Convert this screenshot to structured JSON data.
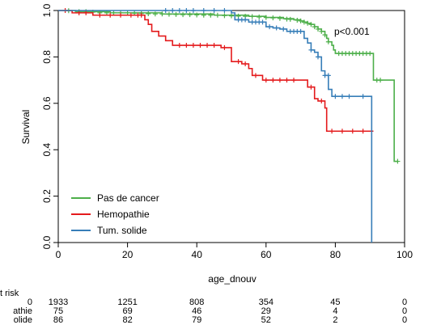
{
  "chart_data": {
    "type": "line",
    "subtype": "kaplan-meier step",
    "xlabel": "age_dnouv",
    "ylabel": "Survival",
    "xlim": [
      0,
      100
    ],
    "ylim": [
      0,
      1
    ],
    "x_ticks": [
      "0",
      "20",
      "40",
      "60",
      "80",
      "100"
    ],
    "y_ticks": [
      "0.0",
      "0.2",
      "0.4",
      "0.6",
      "0.8",
      "1.0"
    ],
    "annotation": "p<0.001",
    "legend_position": "bottom-left",
    "grid": false,
    "series": [
      {
        "name": "Pas de cancer",
        "color": "#4daf4a",
        "steps": [
          [
            0,
            1.0
          ],
          [
            5,
            0.995
          ],
          [
            15,
            0.99
          ],
          [
            30,
            0.985
          ],
          [
            45,
            0.98
          ],
          [
            55,
            0.975
          ],
          [
            60,
            0.97
          ],
          [
            65,
            0.965
          ],
          [
            68,
            0.96
          ],
          [
            70,
            0.955
          ],
          [
            71,
            0.95
          ],
          [
            72,
            0.945
          ],
          [
            73,
            0.94
          ],
          [
            74,
            0.93
          ],
          [
            75,
            0.92
          ],
          [
            76,
            0.91
          ],
          [
            77,
            0.895
          ],
          [
            77.5,
            0.88
          ],
          [
            78,
            0.865
          ],
          [
            79,
            0.85
          ],
          [
            79.5,
            0.83
          ],
          [
            80,
            0.815
          ],
          [
            91,
            0.7
          ],
          [
            97,
            0.35
          ],
          [
            98,
            0.35
          ]
        ],
        "censors": [
          [
            3,
            0.999
          ],
          [
            6,
            0.995
          ],
          [
            8,
            0.995
          ],
          [
            10,
            0.993
          ],
          [
            12,
            0.99
          ],
          [
            14,
            0.99
          ],
          [
            16,
            0.99
          ],
          [
            18,
            0.99
          ],
          [
            20,
            0.99
          ],
          [
            22,
            0.988
          ],
          [
            24,
            0.987
          ],
          [
            26,
            0.986
          ],
          [
            28,
            0.985
          ],
          [
            30,
            0.985
          ],
          [
            32,
            0.984
          ],
          [
            34,
            0.983
          ],
          [
            36,
            0.982
          ],
          [
            38,
            0.982
          ],
          [
            40,
            0.981
          ],
          [
            42,
            0.98
          ],
          [
            44,
            0.98
          ],
          [
            46,
            0.98
          ],
          [
            48,
            0.978
          ],
          [
            50,
            0.977
          ],
          [
            52,
            0.976
          ],
          [
            54,
            0.975
          ],
          [
            56,
            0.974
          ],
          [
            58,
            0.972
          ],
          [
            60,
            0.97
          ],
          [
            62,
            0.968
          ],
          [
            64,
            0.966
          ],
          [
            66,
            0.963
          ],
          [
            67,
            0.962
          ],
          [
            69,
            0.958
          ],
          [
            70,
            0.955
          ],
          [
            71,
            0.95
          ],
          [
            72,
            0.945
          ],
          [
            73,
            0.94
          ],
          [
            74,
            0.93
          ],
          [
            75,
            0.92
          ],
          [
            76,
            0.91
          ],
          [
            77,
            0.895
          ],
          [
            78,
            0.865
          ],
          [
            81,
            0.815
          ],
          [
            82,
            0.815
          ],
          [
            83,
            0.815
          ],
          [
            84,
            0.815
          ],
          [
            85,
            0.815
          ],
          [
            86,
            0.815
          ],
          [
            87,
            0.815
          ],
          [
            88,
            0.815
          ],
          [
            89,
            0.815
          ],
          [
            90,
            0.815
          ],
          [
            92,
            0.7
          ],
          [
            93,
            0.7
          ],
          [
            98,
            0.35
          ]
        ]
      },
      {
        "name": "Hemopathie",
        "color": "#e41a1c",
        "steps": [
          [
            0,
            1.0
          ],
          [
            4,
            0.99
          ],
          [
            10,
            0.98
          ],
          [
            25,
            0.96
          ],
          [
            26,
            0.94
          ],
          [
            27,
            0.91
          ],
          [
            29,
            0.89
          ],
          [
            31,
            0.87
          ],
          [
            33,
            0.85
          ],
          [
            47,
            0.84
          ],
          [
            50,
            0.78
          ],
          [
            53,
            0.77
          ],
          [
            55,
            0.75
          ],
          [
            56,
            0.72
          ],
          [
            59,
            0.7
          ],
          [
            70,
            0.7
          ],
          [
            72,
            0.67
          ],
          [
            74,
            0.62
          ],
          [
            75,
            0.61
          ],
          [
            77,
            0.58
          ],
          [
            77.5,
            0.48
          ],
          [
            91,
            0.48
          ]
        ],
        "censors": [
          [
            2,
            1.0
          ],
          [
            6,
            0.99
          ],
          [
            8,
            0.99
          ],
          [
            12,
            0.98
          ],
          [
            15,
            0.98
          ],
          [
            18,
            0.98
          ],
          [
            21,
            0.98
          ],
          [
            23,
            0.98
          ],
          [
            24,
            0.98
          ],
          [
            35,
            0.85
          ],
          [
            37,
            0.85
          ],
          [
            39,
            0.85
          ],
          [
            41,
            0.85
          ],
          [
            43,
            0.85
          ],
          [
            45,
            0.85
          ],
          [
            48,
            0.84
          ],
          [
            52,
            0.78
          ],
          [
            54,
            0.77
          ],
          [
            57,
            0.72
          ],
          [
            60,
            0.7
          ],
          [
            62,
            0.7
          ],
          [
            64,
            0.7
          ],
          [
            66,
            0.7
          ],
          [
            68,
            0.7
          ],
          [
            73,
            0.67
          ],
          [
            76,
            0.61
          ],
          [
            79,
            0.48
          ],
          [
            82,
            0.48
          ],
          [
            85,
            0.48
          ],
          [
            88,
            0.48
          ]
        ]
      },
      {
        "name": "Tum. solide",
        "color": "#377eb8",
        "steps": [
          [
            0,
            1.0
          ],
          [
            30,
            1.0
          ],
          [
            50,
            0.99
          ],
          [
            51,
            0.96
          ],
          [
            55,
            0.95
          ],
          [
            60,
            0.93
          ],
          [
            62,
            0.925
          ],
          [
            64,
            0.92
          ],
          [
            66,
            0.91
          ],
          [
            71,
            0.88
          ],
          [
            72,
            0.86
          ],
          [
            73,
            0.83
          ],
          [
            74,
            0.82
          ],
          [
            75,
            0.8
          ],
          [
            76,
            0.74
          ],
          [
            77,
            0.72
          ],
          [
            78,
            0.66
          ],
          [
            79,
            0.63
          ],
          [
            90,
            0.63
          ],
          [
            90.5,
            0.0
          ]
        ],
        "censors": [
          [
            31,
            1.0
          ],
          [
            33,
            1.0
          ],
          [
            35,
            1.0
          ],
          [
            37,
            1.0
          ],
          [
            39,
            1.0
          ],
          [
            42,
            1.0
          ],
          [
            45,
            1.0
          ],
          [
            48,
            1.0
          ],
          [
            52,
            0.96
          ],
          [
            53,
            0.96
          ],
          [
            54,
            0.96
          ],
          [
            56,
            0.95
          ],
          [
            57,
            0.95
          ],
          [
            58,
            0.95
          ],
          [
            59,
            0.95
          ],
          [
            61,
            0.93
          ],
          [
            63,
            0.925
          ],
          [
            65,
            0.92
          ],
          [
            67,
            0.91
          ],
          [
            68,
            0.91
          ],
          [
            69,
            0.91
          ],
          [
            70,
            0.91
          ],
          [
            73,
            0.83
          ],
          [
            75,
            0.8
          ],
          [
            77,
            0.72
          ],
          [
            78,
            0.72
          ],
          [
            80,
            0.63
          ],
          [
            82,
            0.63
          ],
          [
            84,
            0.63
          ],
          [
            88,
            0.63
          ]
        ]
      }
    ]
  },
  "risk_table": {
    "title": "t risk",
    "times": [
      0,
      20,
      40,
      60,
      80,
      100
    ],
    "rows": [
      {
        "label": "0",
        "values": [
          "1933",
          "1251",
          "808",
          "354",
          "45",
          "0"
        ]
      },
      {
        "label": "athie",
        "values": [
          "75",
          "69",
          "46",
          "29",
          "4",
          "0"
        ]
      },
      {
        "label": "olide",
        "values": [
          "86",
          "82",
          "79",
          "52",
          "2",
          "0"
        ]
      }
    ]
  }
}
